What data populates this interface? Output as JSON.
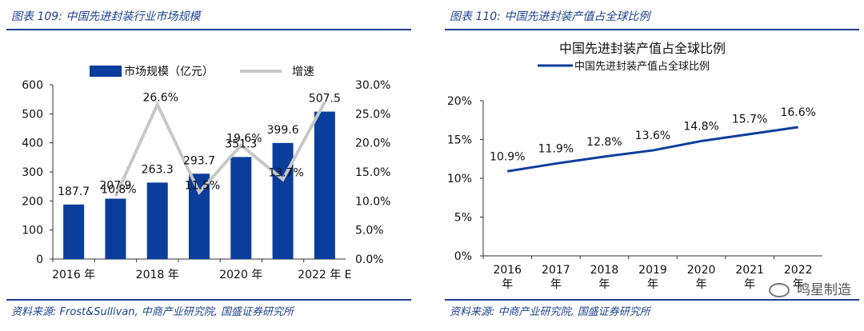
{
  "left": {
    "figure_title": "图表 109:  中国先进封装行业市场规模",
    "source": "资料来源: Frost&Sullivan, 中商产业研究院, 国盛证券研究所",
    "colors": {
      "bar": "#0b3d9c",
      "growth_line": "#c8c8c8",
      "text": "#111111"
    }
  },
  "right": {
    "figure_title": "图表 110:  中国先进封装产值占全球比例",
    "source": "资料来源: 中商产业研究院, 国盛证券研究所",
    "colors": {
      "line": "#0b3d9c",
      "text": "#111111"
    }
  },
  "watermark": {
    "icon": "wechat-icon",
    "text": "鸣星制造"
  },
  "chart_data": [
    {
      "type": "bar",
      "title": "中国先进封装行业市场规模",
      "categories": [
        "2016 年",
        "2017 年",
        "2018 年",
        "2019 年",
        "2020 年",
        "2021 年",
        "2022 年 E"
      ],
      "x_tick_labels": [
        "2016 年",
        "2018 年",
        "2020 年",
        "2022 年 E"
      ],
      "series": [
        {
          "name": "市场规模（亿元）",
          "type": "bar",
          "axis": "left",
          "values": [
            187.7,
            207.9,
            263.3,
            293.7,
            351.3,
            399.6,
            507.5
          ],
          "labels": [
            "187.7",
            "207.9",
            "263.3",
            "293.7",
            "351.3",
            "399.6",
            "507.5"
          ]
        },
        {
          "name": "增速",
          "type": "line",
          "axis": "right",
          "values": [
            null,
            10.8,
            26.6,
            11.5,
            19.6,
            13.7,
            27.0
          ],
          "labels": [
            "",
            "10.8%",
            "26.6%",
            "11.5%",
            "19.6%",
            "13.7%",
            ""
          ]
        }
      ],
      "y_left": {
        "min": 0,
        "max": 600,
        "ticks": [
          0,
          100,
          200,
          300,
          400,
          500,
          600
        ]
      },
      "y_right": {
        "min": 0,
        "max": 30,
        "ticks": [
          "0.0%",
          "5.0%",
          "10.0%",
          "15.0%",
          "20.0%",
          "25.0%",
          "30.0%"
        ]
      },
      "legend_position": "top"
    },
    {
      "type": "line",
      "title": "中国先进封装产值占全球比例",
      "categories": [
        "2016 年",
        "2017 年",
        "2018 年",
        "2019 年",
        "2020 年",
        "2021 年",
        "2022 年"
      ],
      "series": [
        {
          "name": "中国先进封装产值占全球比例",
          "values": [
            10.9,
            11.9,
            12.8,
            13.6,
            14.8,
            15.7,
            16.6
          ],
          "labels": [
            "10.9%",
            "11.9%",
            "12.8%",
            "13.6%",
            "14.8%",
            "15.7%",
            "16.6%"
          ]
        }
      ],
      "y": {
        "min": 0,
        "max": 20,
        "ticks": [
          "0%",
          "5%",
          "10%",
          "15%",
          "20%"
        ]
      },
      "legend_position": "top"
    }
  ]
}
